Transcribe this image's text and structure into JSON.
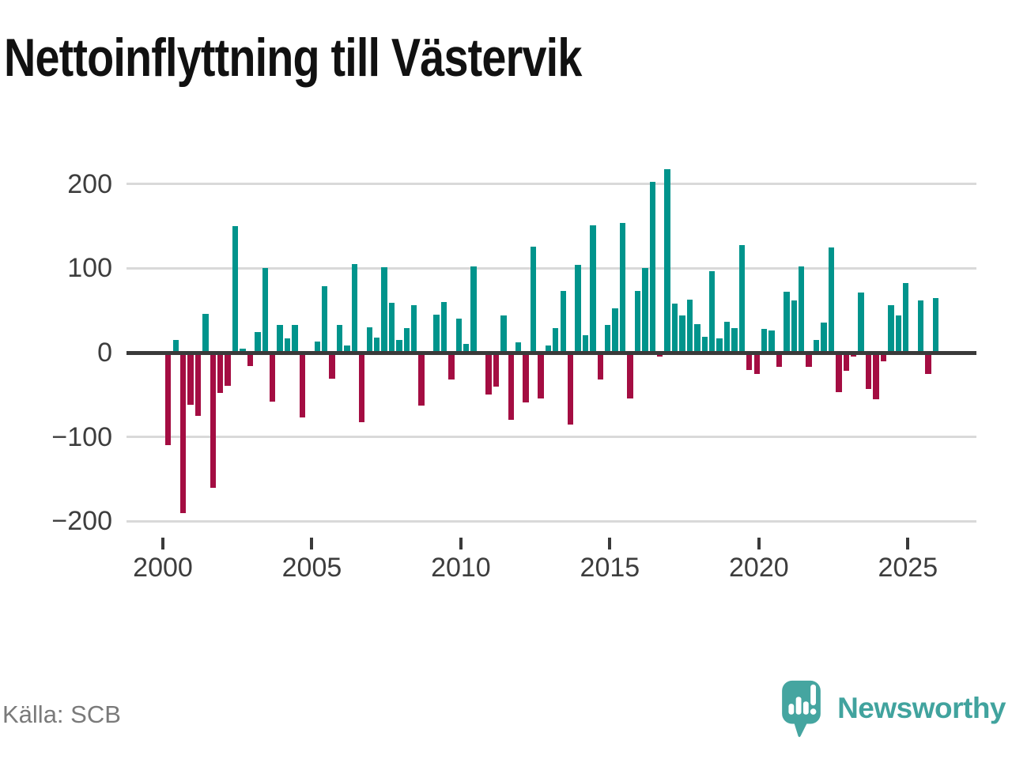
{
  "title": "Nettoinflyttning till Västervik",
  "source": "Källa: SCB",
  "brand": "Newsworthy",
  "colors": {
    "positive_bar": "#00948c",
    "negative_bar": "#a40d42",
    "zero_axis_line": "#3a3a3a",
    "gridline": "#d9d9d9",
    "axis_text": "#3d3d3d",
    "title_text": "#111111",
    "source_text": "#7a7a7a",
    "brand_teal": "#41a39e"
  },
  "chart_data": {
    "type": "bar",
    "title": "Nettoinflyttning till Västervik",
    "xlabel": "",
    "ylabel": "",
    "x_axis": {
      "tick_labels": [
        "2000",
        "2005",
        "2010",
        "2015",
        "2020",
        "2025"
      ]
    },
    "y_axis": {
      "tick_labels": [
        "200",
        "100",
        "0",
        "−100",
        "−200"
      ],
      "tick_values": [
        200,
        100,
        0,
        -100,
        -200
      ],
      "ylim": [
        -220,
        235
      ]
    },
    "grid": "horizontal",
    "legend": "none",
    "granularity": "quarterly",
    "years": [
      {
        "year": 2000,
        "values": [
          -110,
          15,
          -190,
          -62
        ]
      },
      {
        "year": 2001,
        "values": [
          -75,
          46,
          -160,
          -48
        ]
      },
      {
        "year": 2002,
        "values": [
          -39,
          150,
          5,
          -16
        ]
      },
      {
        "year": 2003,
        "values": [
          24,
          100,
          -58,
          33
        ]
      },
      {
        "year": 2004,
        "values": [
          17,
          33,
          -77,
          0
        ]
      },
      {
        "year": 2005,
        "values": [
          13,
          79,
          -31,
          33
        ]
      },
      {
        "year": 2006,
        "values": [
          8,
          105,
          -83,
          30
        ]
      },
      {
        "year": 2007,
        "values": [
          18,
          101,
          59,
          15
        ]
      },
      {
        "year": 2008,
        "values": [
          29,
          56,
          -63,
          0
        ]
      },
      {
        "year": 2009,
        "values": [
          45,
          60,
          -32,
          40
        ]
      },
      {
        "year": 2010,
        "values": [
          10,
          102,
          0,
          -50
        ]
      },
      {
        "year": 2011,
        "values": [
          -40,
          44,
          -80,
          12
        ]
      },
      {
        "year": 2012,
        "values": [
          -59,
          126,
          -54,
          8
        ]
      },
      {
        "year": 2013,
        "values": [
          29,
          73,
          -85,
          104
        ]
      },
      {
        "year": 2014,
        "values": [
          21,
          151,
          -32,
          33
        ]
      },
      {
        "year": 2015,
        "values": [
          53,
          154,
          -54,
          73
        ]
      },
      {
        "year": 2016,
        "values": [
          100,
          203,
          -5,
          218
        ]
      },
      {
        "year": 2017,
        "values": [
          58,
          44,
          63,
          34
        ]
      },
      {
        "year": 2018,
        "values": [
          19,
          97,
          17,
          37
        ]
      },
      {
        "year": 2019,
        "values": [
          29,
          128,
          -21,
          -25
        ]
      },
      {
        "year": 2020,
        "values": [
          28,
          26,
          -17,
          72
        ]
      },
      {
        "year": 2021,
        "values": [
          62,
          102,
          -17,
          15
        ]
      },
      {
        "year": 2022,
        "values": [
          36,
          125,
          -47,
          -22
        ]
      },
      {
        "year": 2023,
        "values": [
          -5,
          71,
          -43,
          -55
        ]
      },
      {
        "year": 2024,
        "values": [
          -10,
          56,
          44,
          83
        ]
      },
      {
        "year": 2025,
        "values": [
          0,
          62,
          -25,
          65
        ]
      }
    ],
    "positive_color": "#00948c",
    "negative_color": "#a40d42"
  }
}
